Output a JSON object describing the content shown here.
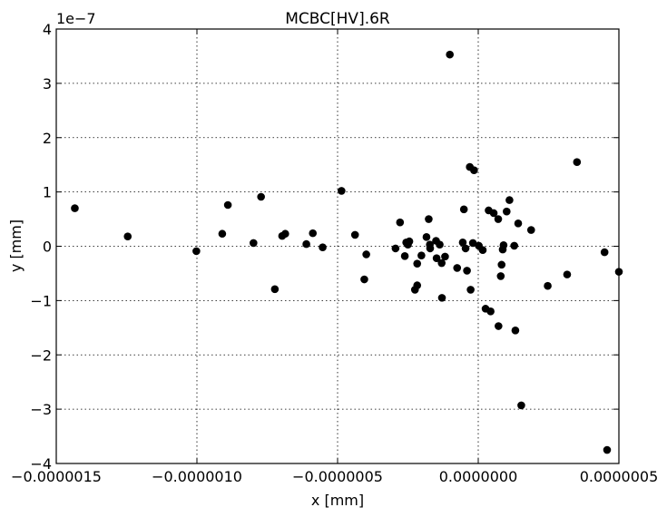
{
  "chart_data": {
    "type": "scatter",
    "title": "MCBC[HV].6R",
    "xlabel": "x [mm]",
    "ylabel": "y [mm]",
    "y_offset_text": "1e−7",
    "xlim": [
      -1.5e-06,
      5e-07
    ],
    "ylim": [
      -4,
      4
    ],
    "y_scale": "1e-7",
    "grid": true,
    "legend": "none",
    "marker_color": "#000000",
    "x_ticks": [
      -1.5e-06,
      -1e-06,
      -5e-07,
      0.0,
      5e-07
    ],
    "x_tick_labels": [
      "−0.0000015",
      "−0.0000010",
      "−0.0000005",
      "0.0000000",
      "0.0000005"
    ],
    "y_ticks": [
      -4,
      -3,
      -2,
      -1,
      0,
      1,
      2,
      3,
      4
    ],
    "y_tick_labels": [
      "−4",
      "−3",
      "−2",
      "−1",
      "0",
      "1",
      "2",
      "3",
      "4"
    ],
    "points": [
      {
        "x": -1.434e-06,
        "y": 0.7
      },
      {
        "x": -1.246e-06,
        "y": 0.18
      },
      {
        "x": -1.002e-06,
        "y": -0.09
      },
      {
        "x": -9.1e-07,
        "y": 0.23
      },
      {
        "x": -8.9e-07,
        "y": 0.76
      },
      {
        "x": -7.99e-07,
        "y": 0.06
      },
      {
        "x": -7.72e-07,
        "y": 0.91
      },
      {
        "x": -7.23e-07,
        "y": -0.79
      },
      {
        "x": -6.97e-07,
        "y": 0.19
      },
      {
        "x": -6.86e-07,
        "y": 0.23
      },
      {
        "x": -6.11e-07,
        "y": 0.04
      },
      {
        "x": -5.88e-07,
        "y": 0.24
      },
      {
        "x": -5.53e-07,
        "y": -0.02
      },
      {
        "x": -4.86e-07,
        "y": 1.02
      },
      {
        "x": -4.38e-07,
        "y": 0.21
      },
      {
        "x": -4.05e-07,
        "y": -0.61
      },
      {
        "x": -3.98e-07,
        "y": -0.15
      },
      {
        "x": -2.94e-07,
        "y": -0.04
      },
      {
        "x": -2.78e-07,
        "y": 0.44
      },
      {
        "x": -2.61e-07,
        "y": -0.18
      },
      {
        "x": -2.56e-07,
        "y": 0.07
      },
      {
        "x": -2.5e-07,
        "y": 0.03
      },
      {
        "x": -2.45e-07,
        "y": 0.09
      },
      {
        "x": -2.25e-07,
        "y": -0.8
      },
      {
        "x": -2.17e-07,
        "y": -0.72
      },
      {
        "x": -2.17e-07,
        "y": -0.32
      },
      {
        "x": -2.02e-07,
        "y": -0.17
      },
      {
        "x": -1.84e-07,
        "y": 0.17
      },
      {
        "x": -1.76e-07,
        "y": 0.5
      },
      {
        "x": -1.72e-07,
        "y": 0.03
      },
      {
        "x": -1.71e-07,
        "y": -0.04
      },
      {
        "x": -1.5e-07,
        "y": 0.1
      },
      {
        "x": -1.48e-07,
        "y": -0.22
      },
      {
        "x": -1.37e-07,
        "y": 0.03
      },
      {
        "x": -1.3e-07,
        "y": -0.31
      },
      {
        "x": -1.29e-07,
        "y": -0.95
      },
      {
        "x": -1.18e-07,
        "y": -0.19
      },
      {
        "x": -1.01e-07,
        "y": 3.53
      },
      {
        "x": -7.5e-08,
        "y": -0.4
      },
      {
        "x": -5.5e-08,
        "y": 0.07
      },
      {
        "x": -5.1e-08,
        "y": 0.68
      },
      {
        "x": -4.5e-08,
        "y": -0.04
      },
      {
        "x": -4e-08,
        "y": -0.45
      },
      {
        "x": -3e-08,
        "y": 1.46
      },
      {
        "x": -2.7e-08,
        "y": -0.8
      },
      {
        "x": -1.9e-08,
        "y": 0.06
      },
      {
        "x": -1.5e-08,
        "y": 1.4
      },
      {
        "x": 2e-09,
        "y": 0.01
      },
      {
        "x": 1.6e-08,
        "y": -0.07
      },
      {
        "x": 2.6e-08,
        "y": -1.15
      },
      {
        "x": 3.7e-08,
        "y": 0.66
      },
      {
        "x": 4.4e-08,
        "y": -1.2
      },
      {
        "x": 5.5e-08,
        "y": 0.61
      },
      {
        "x": 7.1e-08,
        "y": 0.5
      },
      {
        "x": 7.2e-08,
        "y": -1.47
      },
      {
        "x": 8e-08,
        "y": -0.55
      },
      {
        "x": 8.3e-08,
        "y": -0.34
      },
      {
        "x": 8.7e-08,
        "y": -0.06
      },
      {
        "x": 9e-08,
        "y": 0.02
      },
      {
        "x": 1.01e-07,
        "y": 0.64
      },
      {
        "x": 1.11e-07,
        "y": 0.85
      },
      {
        "x": 1.28e-07,
        "y": 0.01
      },
      {
        "x": 1.32e-07,
        "y": -1.55
      },
      {
        "x": 1.42e-07,
        "y": 0.42
      },
      {
        "x": 1.53e-07,
        "y": -2.93
      },
      {
        "x": 1.88e-07,
        "y": 0.3
      },
      {
        "x": 2.47e-07,
        "y": -0.73
      },
      {
        "x": 3.16e-07,
        "y": -0.52
      },
      {
        "x": 3.51e-07,
        "y": 1.55
      },
      {
        "x": 4.49e-07,
        "y": -0.11
      },
      {
        "x": 4.58e-07,
        "y": -3.75
      },
      {
        "x": 5e-07,
        "y": -0.47
      }
    ]
  }
}
